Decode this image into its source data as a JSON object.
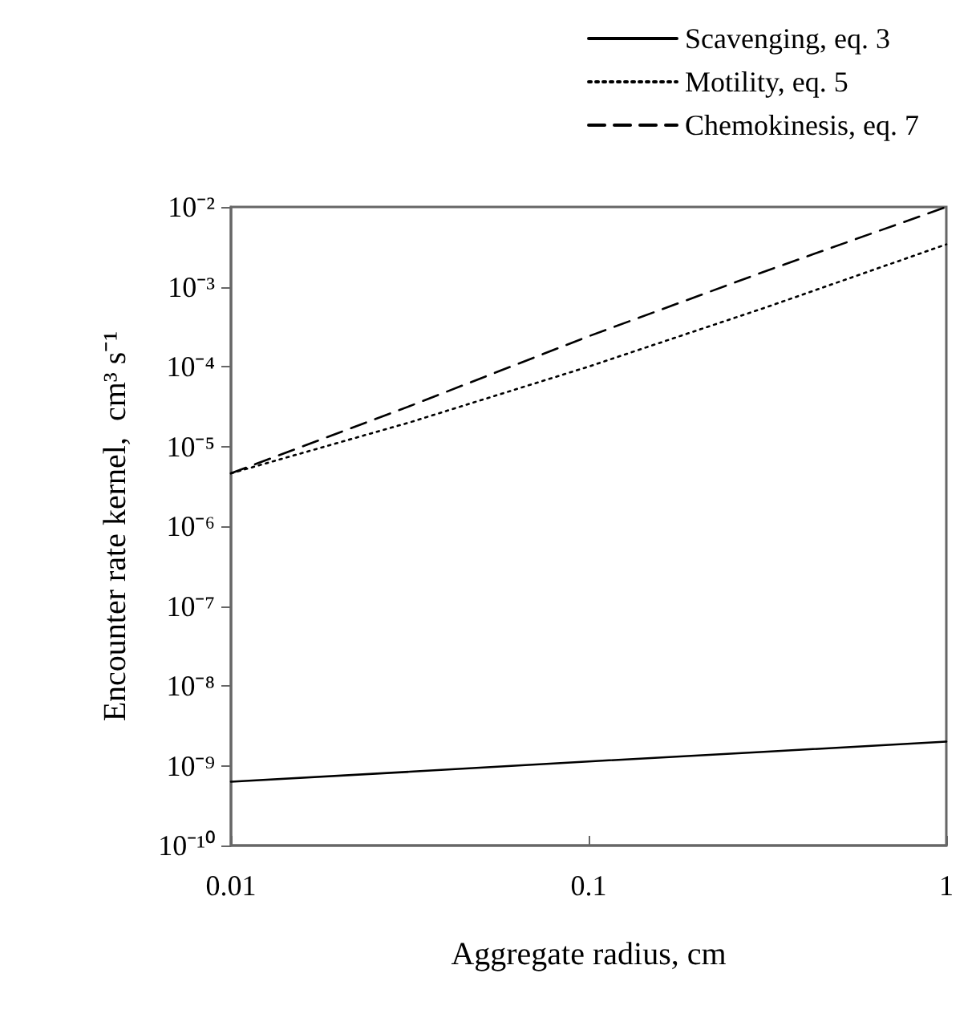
{
  "chart_data": {
    "type": "line",
    "xlabel": "Aggregate radius, cm",
    "ylabel": "Encounter rate kernel,  cm³ s⁻¹",
    "x": [
      0.01,
      0.0316,
      0.1,
      0.316,
      1
    ],
    "series": [
      {
        "name": "Scavenging, eq. 3",
        "color": "#000000",
        "line_style": "solid",
        "values": [
          6.3e-10,
          8.4e-10,
          1.13e-09,
          1.5e-09,
          2e-09
        ]
      },
      {
        "name": "Motility, eq. 5",
        "color": "#000000",
        "line_style": "dotted",
        "values": [
          4.6e-06,
          2e-05,
          0.0001,
          0.00056,
          0.0034
        ]
      },
      {
        "name": "Chemokinesis, eq. 7",
        "color": "#000000",
        "line_style": "dashed",
        "values": [
          4.6e-06,
          3.2e-05,
          0.00024,
          0.0016,
          0.01
        ]
      }
    ],
    "log": "xy",
    "xlim": [
      0.01,
      1
    ],
    "xticks": [
      0.01,
      0.1,
      1
    ],
    "ylim": [
      1e-10,
      0.01
    ],
    "yticks": [
      {
        "value": 1e-10,
        "label": "10⁻¹⁰"
      },
      {
        "value": 1e-09,
        "label": "10⁻⁹"
      },
      {
        "value": 1e-08,
        "label": "10⁻⁸"
      },
      {
        "value": 1e-07,
        "label": "10⁻⁷"
      },
      {
        "value": 1e-06,
        "label": "10⁻⁶"
      },
      {
        "value": 1e-05,
        "label": "10⁻⁵"
      },
      {
        "value": 0.0001,
        "label": "10⁻⁴"
      },
      {
        "value": 0.001,
        "label": "10⁻³"
      },
      {
        "value": 0.01,
        "label": "10⁻²"
      }
    ],
    "grid": false,
    "legend": "top right",
    "marker": "none"
  }
}
